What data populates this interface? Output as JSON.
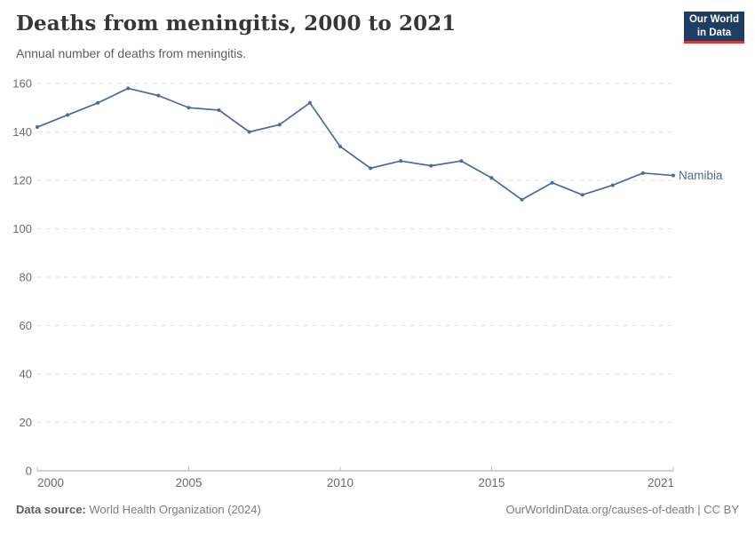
{
  "header": {
    "title": "Deaths from meningitis, 2000 to 2021",
    "subtitle": "Annual number of deaths from meningitis.",
    "logo": {
      "line1": "Our World",
      "line2": "in Data"
    }
  },
  "chart_data": {
    "type": "line",
    "title": "Deaths from meningitis, 2000 to 2021",
    "xlabel": "",
    "ylabel": "",
    "xlim": [
      2000,
      2021
    ],
    "ylim": [
      0,
      160
    ],
    "x_ticks": [
      2000,
      2005,
      2010,
      2015,
      2021
    ],
    "y_ticks": [
      0,
      20,
      40,
      60,
      80,
      100,
      120,
      140,
      160
    ],
    "grid": "horizontal-dashed",
    "legend_position": "end-of-line-label",
    "series": [
      {
        "name": "Namibia",
        "color": "#4c6a9c",
        "x": [
          2000,
          2001,
          2002,
          2003,
          2004,
          2005,
          2006,
          2007,
          2008,
          2009,
          2010,
          2011,
          2012,
          2013,
          2014,
          2015,
          2016,
          2017,
          2018,
          2019,
          2020,
          2021
        ],
        "values": [
          142,
          147,
          152,
          158,
          155,
          150,
          149,
          140,
          143,
          152,
          134,
          125,
          128,
          126,
          128,
          121,
          112,
          119,
          114,
          118,
          123,
          122
        ]
      }
    ]
  },
  "footer": {
    "source_label": "Data source:",
    "source_value": " World Health Organization (2024)",
    "citation": "OurWorldinData.org/causes-of-death | CC BY"
  },
  "colors": {
    "line": "#4c6a9c",
    "grid": "#e0e0e0",
    "axis": "#a5a5a5",
    "tick_text": "#6b6b6b",
    "logo_bg": "#1d3d63",
    "logo_stripe": "#d7362c"
  }
}
